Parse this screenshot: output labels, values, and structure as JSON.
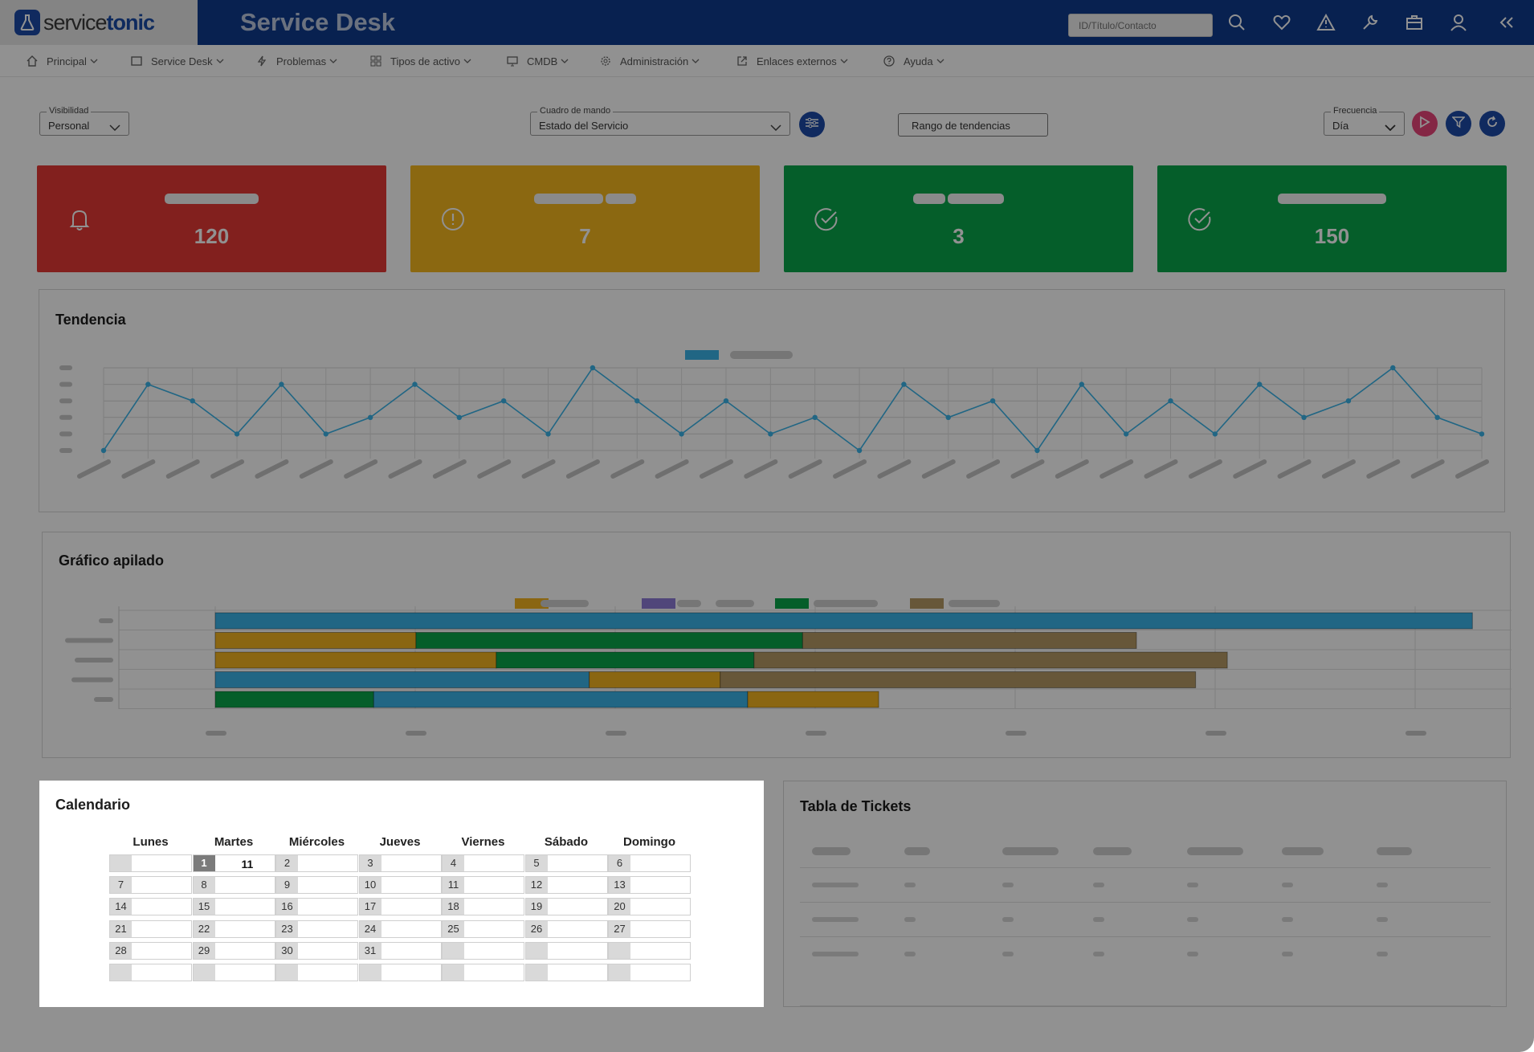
{
  "header": {
    "logo_light": "service",
    "logo_bold": "tonic",
    "title": "Service Desk",
    "search_placeholder": "ID/Título/Contacto"
  },
  "menu": [
    {
      "label": "Principal",
      "icon": "home-icon"
    },
    {
      "label": "Service Desk",
      "icon": "ticket-icon"
    },
    {
      "label": "Problemas",
      "icon": "bolt-icon"
    },
    {
      "label": "Tipos de activo",
      "icon": "grid-icon"
    },
    {
      "label": "CMDB",
      "icon": "monitor-icon"
    },
    {
      "label": "Administración",
      "icon": "gear-icon"
    },
    {
      "label": "Enlaces externos",
      "icon": "external-link-icon"
    },
    {
      "label": "Ayuda",
      "icon": "help-icon"
    }
  ],
  "toolbar": {
    "visibility_label": "Visibilidad",
    "visibility_value": "Personal",
    "dashboard_label": "Cuadro de mando",
    "dashboard_value": "Estado del Servicio",
    "trend_range_button": "Rango de tendencias",
    "frequency_label": "Frecuencia",
    "frequency_value": "Día"
  },
  "kpis": [
    {
      "value": "120",
      "color": "#e53935",
      "icon": "bell-icon"
    },
    {
      "value": "7",
      "color": "#f4b81f",
      "icon": "alert-circle-icon"
    },
    {
      "value": "3",
      "color": "#0aa64a",
      "icon": "check-circle-icon"
    },
    {
      "value": "150",
      "color": "#0aa64a",
      "icon": "check-circle-icon"
    }
  ],
  "panels": {
    "trend_title": "Tendencia",
    "stacked_title": "Gráfico apilado",
    "calendar_title": "Calendario",
    "tickets_title": "Tabla de Tickets"
  },
  "chart_data": [
    {
      "type": "line",
      "title": "Tendencia",
      "series": [
        {
          "values": [
            0,
            4,
            3,
            1,
            4,
            1,
            2,
            4,
            2,
            3,
            1,
            5,
            3,
            1,
            3,
            1,
            2,
            0,
            4,
            2,
            3,
            0,
            4,
            1,
            3,
            1,
            4,
            2,
            3,
            5,
            2,
            1
          ]
        }
      ],
      "ylim": [
        0,
        5
      ],
      "grid": true,
      "legend": "top-center"
    },
    {
      "type": "bar",
      "orientation": "horizontal",
      "stacked": true,
      "title": "Gráfico apilado",
      "rows": [
        {
          "segments": [
            {
              "color": "#3ab4e8",
              "value": 59.5
            }
          ]
        },
        {
          "segments": [
            {
              "color": "#f2b420",
              "value": 9.5
            },
            {
              "color": "#0aa64a",
              "value": 18.3
            },
            {
              "color": "#b59a64",
              "value": 15.8
            }
          ]
        },
        {
          "segments": [
            {
              "color": "#f2b420",
              "value": 13.3
            },
            {
              "color": "#0aa64a",
              "value": 12.2
            },
            {
              "color": "#b59a64",
              "value": 22.4
            }
          ]
        },
        {
          "segments": [
            {
              "color": "#3ab4e8",
              "value": 17.7
            },
            {
              "color": "#f2b420",
              "value": 6.2
            },
            {
              "color": "#b59a64",
              "value": 22.5
            }
          ]
        },
        {
          "segments": [
            {
              "color": "#0aa64a",
              "value": 7.5
            },
            {
              "color": "#3ab4e8",
              "value": 17.7
            },
            {
              "color": "#f2b420",
              "value": 6.2
            }
          ]
        }
      ],
      "xlim": [
        0,
        65
      ],
      "grid": true,
      "legend": "top-center",
      "legend_colors": [
        "#f2b420",
        "#8e7bd6",
        "#0aa64a",
        "#b59a64"
      ]
    }
  ],
  "calendar": {
    "weekdays": [
      "Lunes",
      "Martes",
      "Miércoles",
      "Jueves",
      "Viernes",
      "Sábado",
      "Domingo"
    ],
    "weeks": [
      [
        "",
        "1",
        "2",
        "3",
        "4",
        "5",
        "6"
      ],
      [
        "7",
        "8",
        "9",
        "10",
        "11",
        "12",
        "13"
      ],
      [
        "14",
        "15",
        "16",
        "17",
        "18",
        "19",
        "20"
      ],
      [
        "21",
        "22",
        "23",
        "24",
        "25",
        "26",
        "27"
      ],
      [
        "28",
        "29",
        "30",
        "31",
        "",
        "",
        ""
      ],
      [
        "",
        "",
        "",
        "",
        "",
        "",
        ""
      ]
    ],
    "selected_day": "1",
    "selected_count": "11"
  },
  "colors": {
    "header": "#0f3a8e",
    "play_button": "#e8457a",
    "filter_button": "#1d4aa8",
    "refresh_button": "#1d4aa8"
  }
}
